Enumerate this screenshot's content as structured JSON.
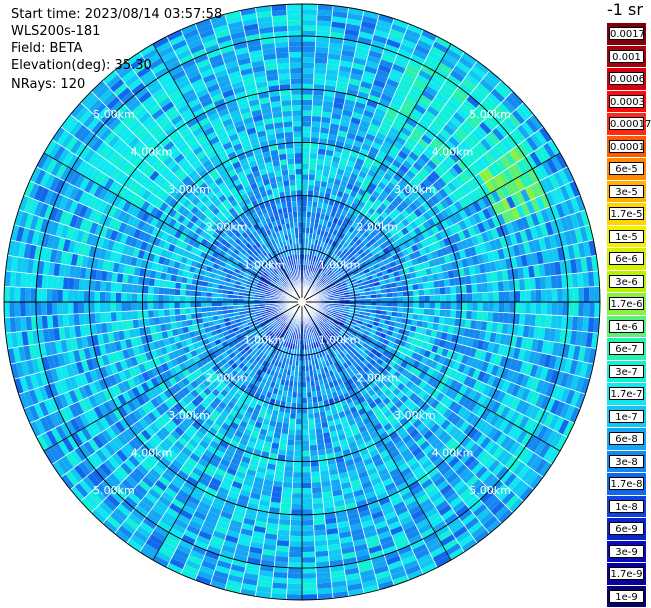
{
  "meta": {
    "start_time": "Start time: 2023/08/14 03:57:58",
    "instrument": "WLS200s-181",
    "field": "Field: BETA",
    "elevation": "Elevation(deg): 35.30",
    "nrays": "NRays: 120"
  },
  "colorbar": {
    "units": "-1 sr",
    "entries": [
      {
        "label": "0.0017",
        "color": "#80000a"
      },
      {
        "label": "0.001",
        "color": "#a8000e"
      },
      {
        "label": "0.0006",
        "color": "#d60010"
      },
      {
        "label": "0.0003",
        "color": "#ff0a0a"
      },
      {
        "label": "0.00017",
        "color": "#ff2a18"
      },
      {
        "label": "0.0001",
        "color": "#ff5a00"
      },
      {
        "label": "6e-5",
        "color": "#ff8a00"
      },
      {
        "label": "3e-5",
        "color": "#ffb000"
      },
      {
        "label": "1.7e-5",
        "color": "#ffd400"
      },
      {
        "label": "1e-5",
        "color": "#f4f000"
      },
      {
        "label": "6e-6",
        "color": "#d8f000"
      },
      {
        "label": "3e-6",
        "color": "#b8f200"
      },
      {
        "label": "1.7e-6",
        "color": "#8cf040"
      },
      {
        "label": "1e-6",
        "color": "#5af07a"
      },
      {
        "label": "6e-7",
        "color": "#2af0b0"
      },
      {
        "label": "3e-7",
        "color": "#12f0d8"
      },
      {
        "label": "1.7e-7",
        "color": "#10e8f0"
      },
      {
        "label": "1e-7",
        "color": "#10c8f4"
      },
      {
        "label": "6e-8",
        "color": "#14a8f4"
      },
      {
        "label": "3e-8",
        "color": "#1488f0"
      },
      {
        "label": "1.7e-8",
        "color": "#1268ec"
      },
      {
        "label": "1e-8",
        "color": "#1044e0"
      },
      {
        "label": "6e-9",
        "color": "#0c24d0"
      },
      {
        "label": "3e-9",
        "color": "#0a0cc0"
      },
      {
        "label": "1.7e-9",
        "color": "#0800a0"
      },
      {
        "label": "1e-9",
        "color": "#060070"
      }
    ]
  },
  "chart_data": {
    "type": "heatmap",
    "projection": "polar-ppi",
    "field": "BETA",
    "units": "-1 sr",
    "n_rays": 120,
    "azimuth_range_deg": [
      0,
      360
    ],
    "max_range_km": 5.6,
    "range_ring_km": [
      1.0,
      2.0,
      3.0,
      4.0,
      5.0
    ],
    "range_ring_labels": [
      "1.00km",
      "2.00km",
      "3.00km",
      "4.00km",
      "5.00km"
    ],
    "radial_gridline_step_deg": 30,
    "grid": true,
    "color_scale": "log",
    "value_range": [
      1e-09,
      0.0017
    ],
    "dominant_value_range": [
      1e-08,
      3e-07
    ],
    "high_value_features": [
      {
        "azimuth_deg": [
          25,
          60
        ],
        "range_km": [
          3.5,
          5.3
        ],
        "approx_value": 3e-07
      },
      {
        "azimuth_deg": [
          55,
          70
        ],
        "range_km": [
          4.0,
          4.9
        ],
        "approx_value": 1e-06
      },
      {
        "azimuth_deg": [
          300,
          330
        ],
        "range_km": [
          3.2,
          4.8
        ],
        "approx_value": 2e-07
      }
    ]
  }
}
